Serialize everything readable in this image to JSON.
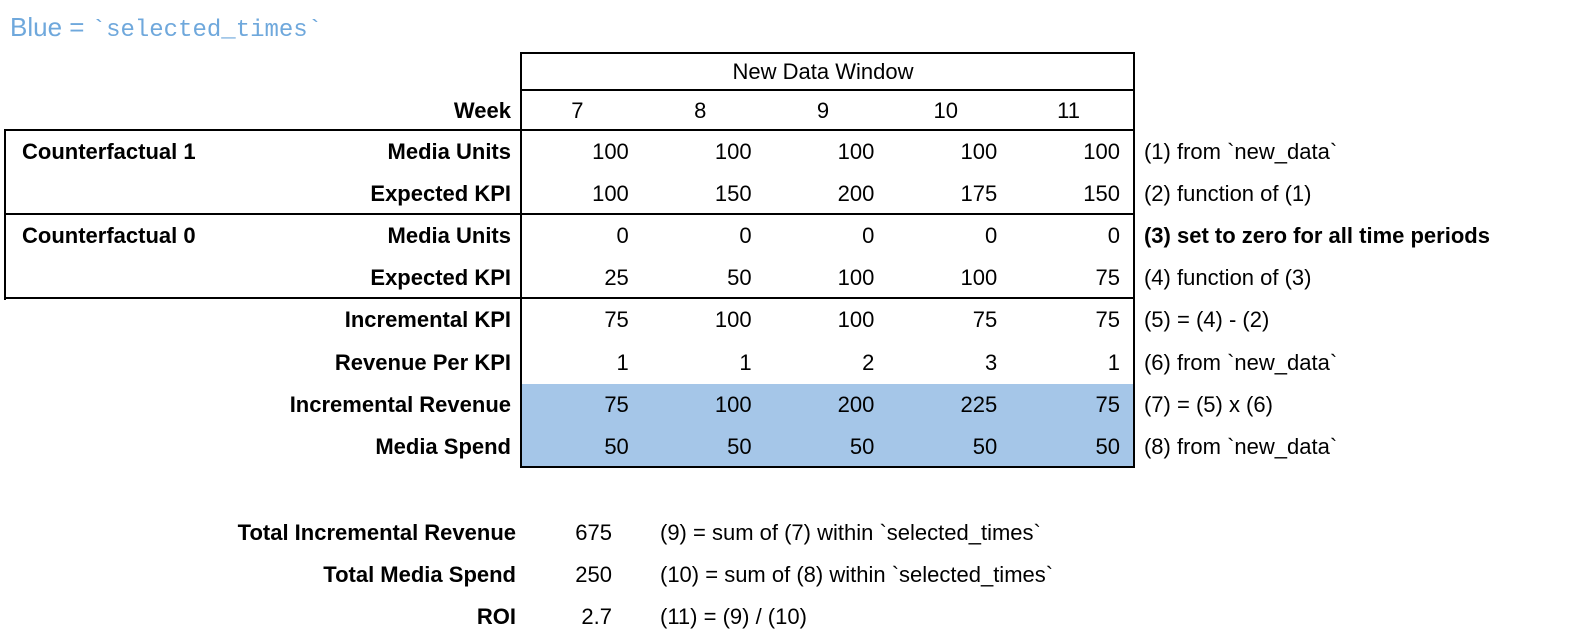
{
  "title": {
    "prefix": "Blue = ",
    "code": "`selected_times`"
  },
  "colors": {
    "highlight_blue": "#A5C6E8",
    "title_blue": "#6FA8DC",
    "border_black": "#000000"
  },
  "table": {
    "window_header": "New Data Window",
    "week_label": "Week",
    "weeks": [
      "7",
      "8",
      "9",
      "10",
      "11"
    ],
    "rows": [
      {
        "group": "Counterfactual 1",
        "label": "Media Units",
        "values": [
          "100",
          "100",
          "100",
          "100",
          "100"
        ],
        "note": "(1) from `new_data`"
      },
      {
        "group": "",
        "label": "Expected KPI",
        "values": [
          "100",
          "150",
          "200",
          "175",
          "150"
        ],
        "note": "(2) function of (1)"
      },
      {
        "group": "Counterfactual 0",
        "label": "Media Units",
        "values": [
          "0",
          "0",
          "0",
          "0",
          "0"
        ],
        "note": "(3) set to zero for all time periods"
      },
      {
        "group": "",
        "label": "Expected KPI",
        "values": [
          "25",
          "50",
          "100",
          "100",
          "75"
        ],
        "note": "(4) function of (3)"
      },
      {
        "group": "",
        "label": "Incremental KPI",
        "values": [
          "75",
          "100",
          "100",
          "75",
          "75"
        ],
        "note": "(5) = (4) - (2)"
      },
      {
        "group": "",
        "label": "Revenue Per KPI",
        "values": [
          "1",
          "1",
          "2",
          "3",
          "1"
        ],
        "note": "(6) from `new_data`"
      },
      {
        "group": "",
        "label": "Incremental Revenue",
        "values": [
          "75",
          "100",
          "200",
          "225",
          "75"
        ],
        "note": "(7) = (5) x (6)"
      },
      {
        "group": "",
        "label": "Media Spend",
        "values": [
          "50",
          "50",
          "50",
          "50",
          "50"
        ],
        "note": "(8) from `new_data`"
      }
    ]
  },
  "summary": {
    "rows": [
      {
        "label": "Total Incremental Revenue",
        "value": "675",
        "note": "(9) = sum of (7) within `selected_times`"
      },
      {
        "label": "Total Media Spend",
        "value": "250",
        "note": "(10) = sum of (8) within `selected_times`"
      },
      {
        "label": "ROI",
        "value": "2.7",
        "note": "(11) = (9) / (10)"
      }
    ]
  }
}
